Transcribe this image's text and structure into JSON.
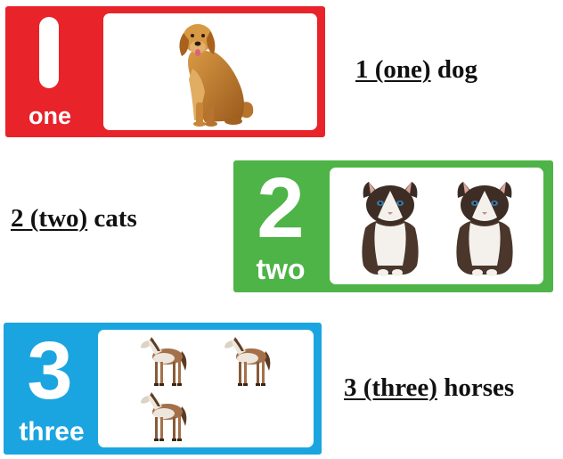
{
  "cards": [
    {
      "color": "#e8232a",
      "numeral": "1",
      "word": "one",
      "animal": "dog",
      "animal_count": 1
    },
    {
      "color": "#4eb447",
      "numeral": "2",
      "word": "two",
      "animal": "cat",
      "animal_count": 2
    },
    {
      "color": "#1ba5e0",
      "numeral": "3",
      "word": "three",
      "animal": "horse",
      "animal_count": 3
    }
  ],
  "captions": [
    {
      "underlined": "1 (one)",
      "rest": " dog"
    },
    {
      "underlined": "2 (two)",
      "rest": " cats"
    },
    {
      "underlined": "3 (three)",
      "rest": " horses"
    }
  ]
}
